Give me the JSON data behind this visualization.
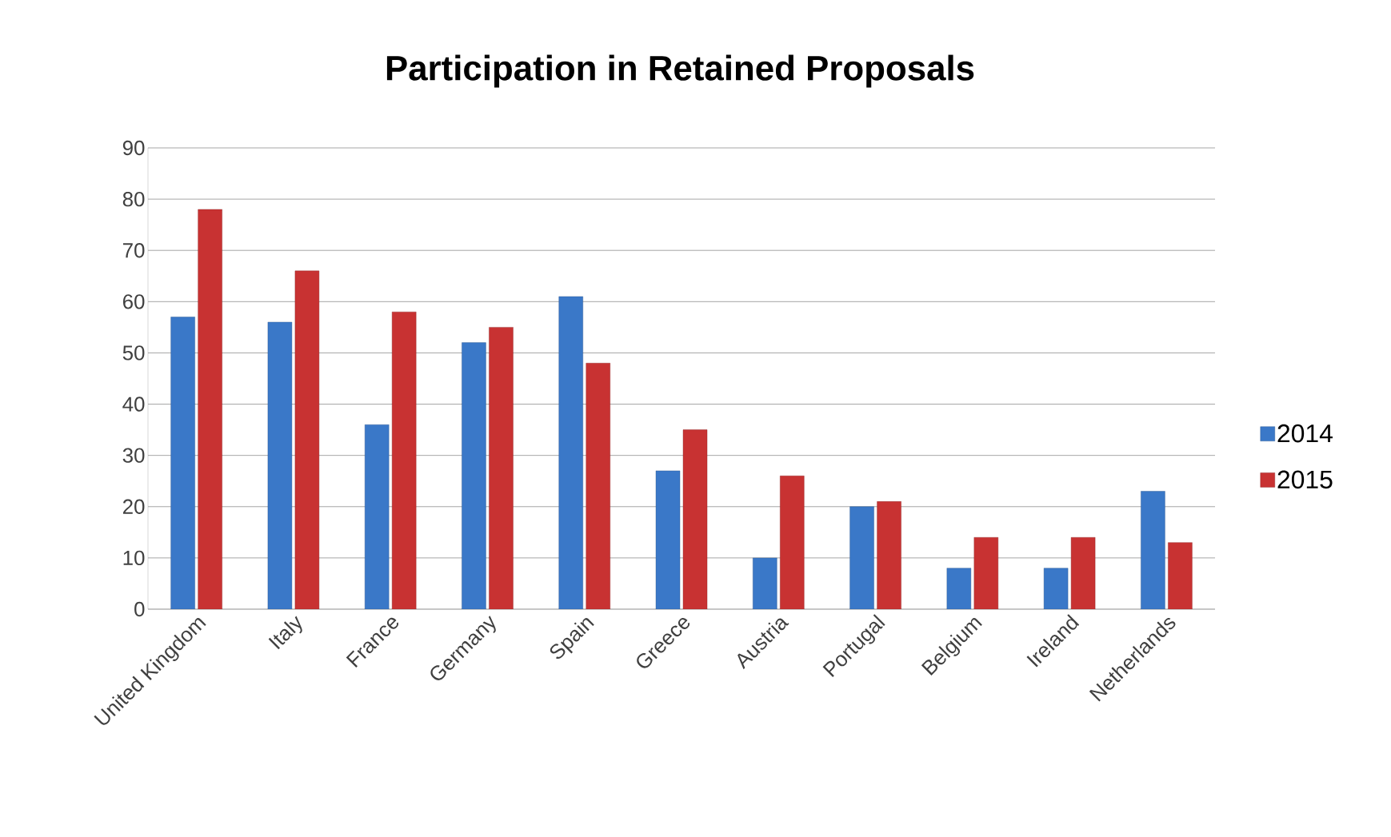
{
  "chart_data": {
    "type": "bar",
    "title": "Participation in Retained Proposals",
    "categories": [
      "United Kingdom",
      "Italy",
      "France",
      "Germany",
      "Spain",
      "Greece",
      "Austria",
      "Portugal",
      "Belgium",
      "Ireland",
      "Netherlands"
    ],
    "series": [
      {
        "name": "2014",
        "color": "#3a78c8",
        "values": [
          57,
          56,
          36,
          52,
          61,
          27,
          10,
          20,
          8,
          8,
          23
        ]
      },
      {
        "name": "2015",
        "color": "#c83232",
        "values": [
          78,
          66,
          58,
          55,
          48,
          35,
          26,
          21,
          14,
          14,
          13
        ]
      }
    ],
    "ylim": [
      0,
      90
    ],
    "yticks": [
      0,
      10,
      20,
      30,
      40,
      50,
      60,
      70,
      80,
      90
    ],
    "grid": "y",
    "legend": "right"
  }
}
